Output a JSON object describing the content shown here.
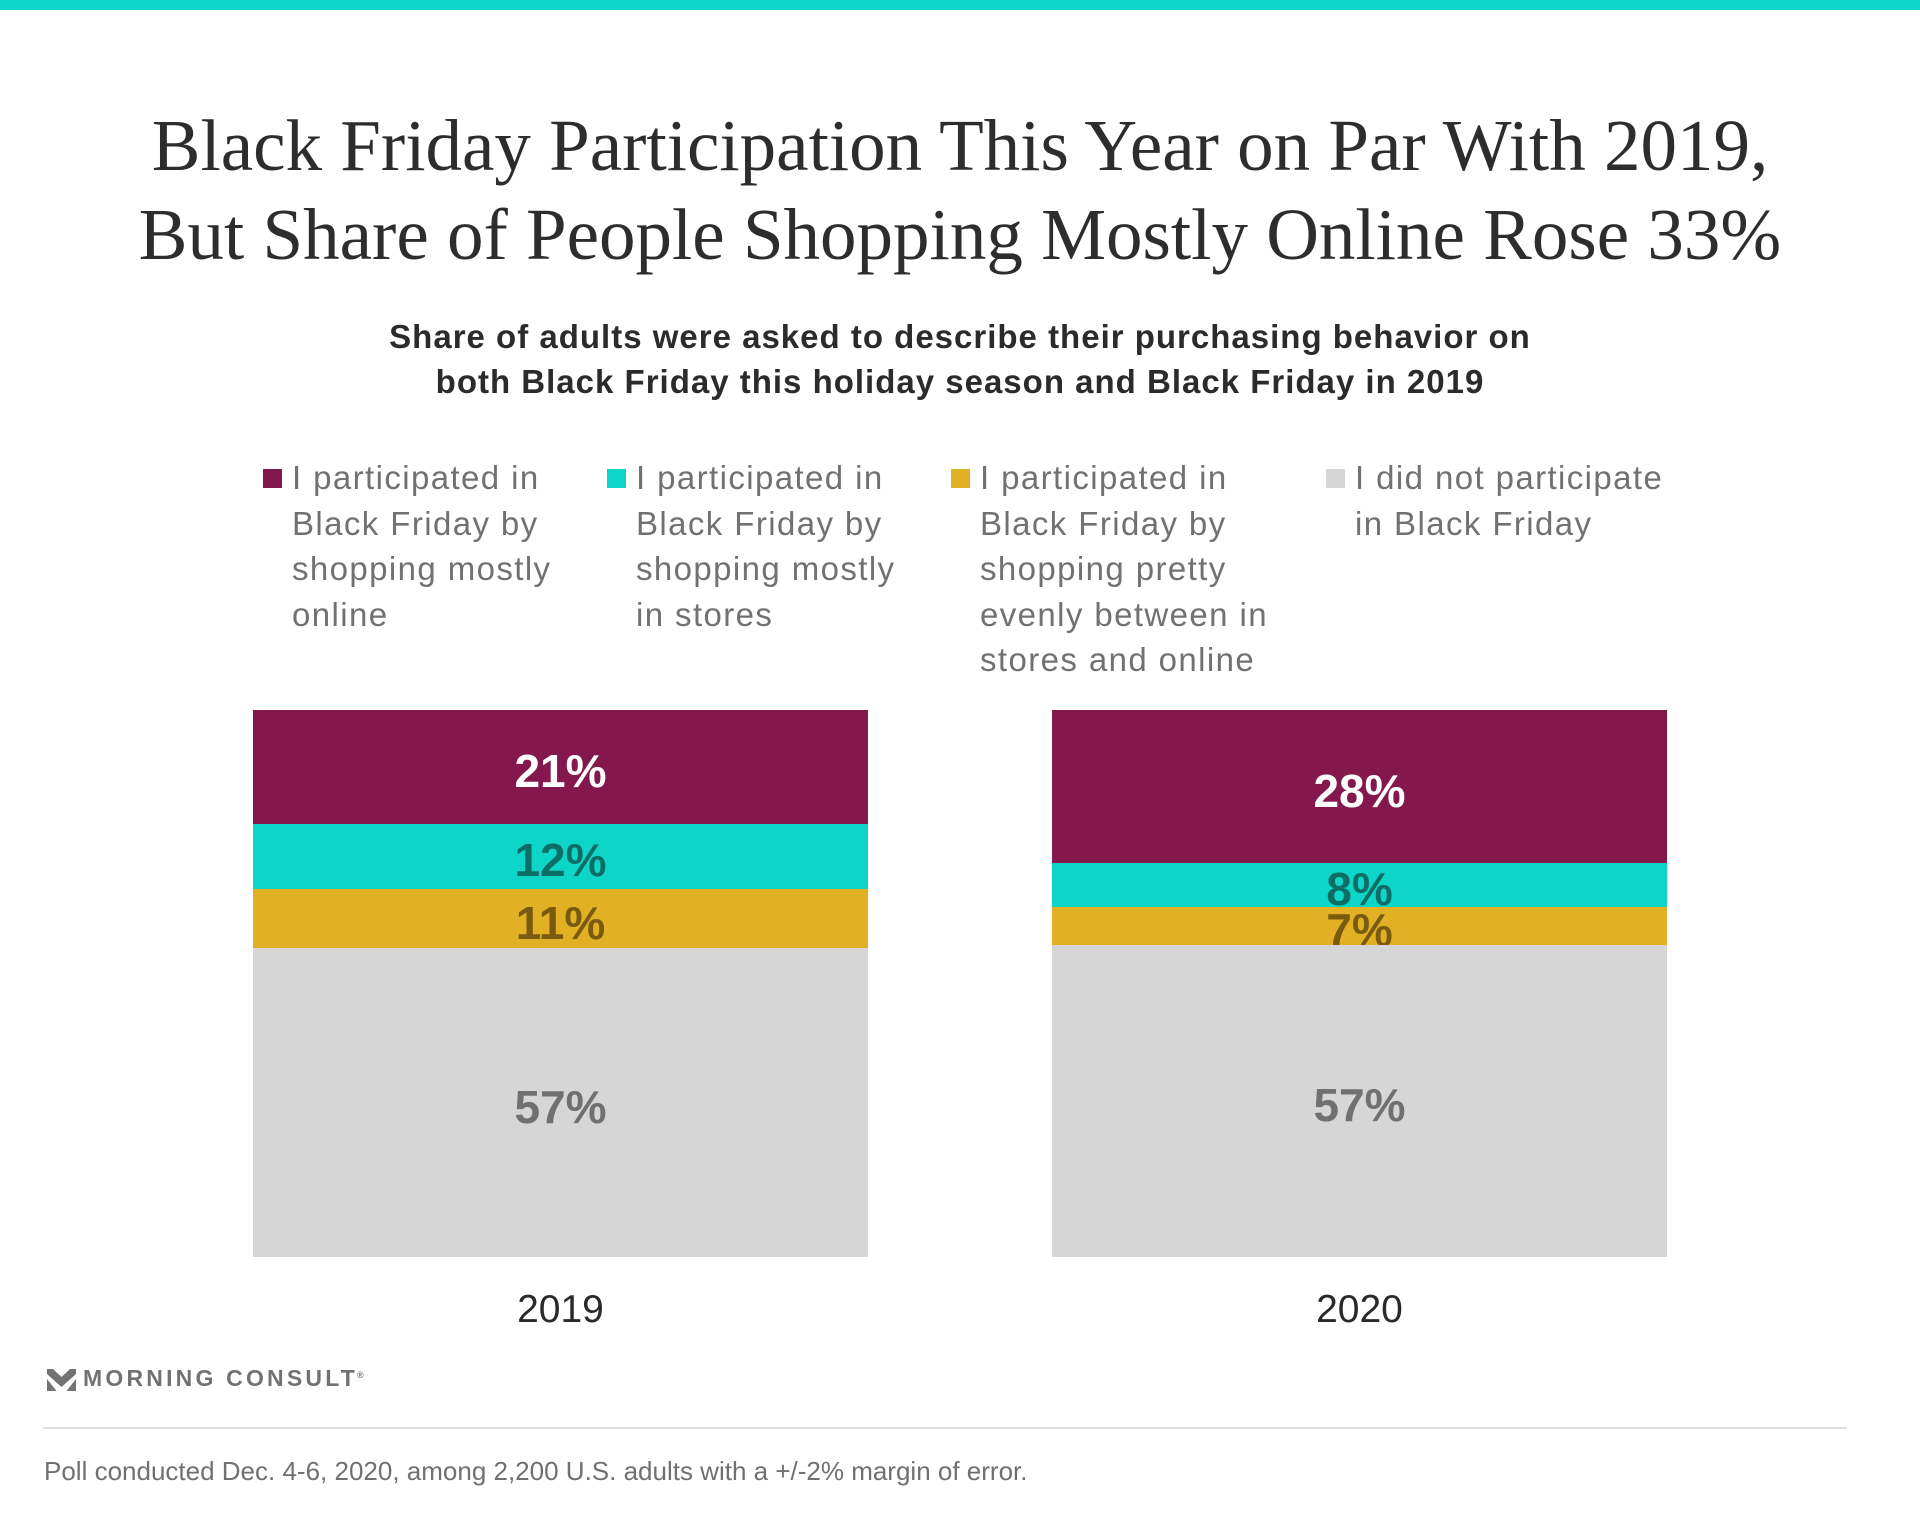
{
  "theme": {
    "accent_bar_color": "#0DD6C8"
  },
  "chart_data": {
    "type": "bar",
    "orientation": "vertical",
    "stacked": true,
    "normalize_each_bar": true,
    "grid": false,
    "legend_position": "top",
    "title_lines": [
      "Black Friday Participation This Year on Par With 2019,",
      "But Share of People Shopping Mostly Online Rose 33%"
    ],
    "subtitle_lines": [
      "Share of adults were asked to describe their purchasing behavior on",
      "both Black Friday this holiday season and Black Friday in 2019"
    ],
    "categories": [
      "2019",
      "2020"
    ],
    "series": [
      {
        "legend_lines": [
          "I participated in",
          "Black Friday by",
          "shopping mostly",
          "online"
        ],
        "values": [
          21,
          28
        ],
        "labels": [
          "21%",
          "28%"
        ],
        "color": "#84174B",
        "label_color": "#FFFFFF"
      },
      {
        "legend_lines": [
          "I participated in",
          "Black Friday by",
          "shopping mostly",
          "in stores"
        ],
        "values": [
          12,
          8
        ],
        "labels": [
          "12%",
          "8%"
        ],
        "color": "#0DD6C8",
        "label_color": "#0E6E67"
      },
      {
        "legend_lines": [
          "I participated in",
          "Black Friday by",
          "shopping pretty",
          "evenly between in",
          "stores and online"
        ],
        "values": [
          11,
          7
        ],
        "labels": [
          "11%",
          "7%"
        ],
        "color": "#E1B024",
        "label_color": "#7A5B0E"
      },
      {
        "legend_lines": [
          "I did not participate",
          "in Black Friday"
        ],
        "values": [
          57,
          57
        ],
        "labels": [
          "57%",
          "57%"
        ],
        "color": "#D6D6D6",
        "label_color": "#707070"
      }
    ]
  },
  "branding": {
    "logo_text": "MORNING CONSULT",
    "registered_mark": "®"
  },
  "footer": {
    "note": "Poll conducted Dec. 4-6, 2020, among 2,200 U.S. adults with a +/-2% margin of error."
  }
}
